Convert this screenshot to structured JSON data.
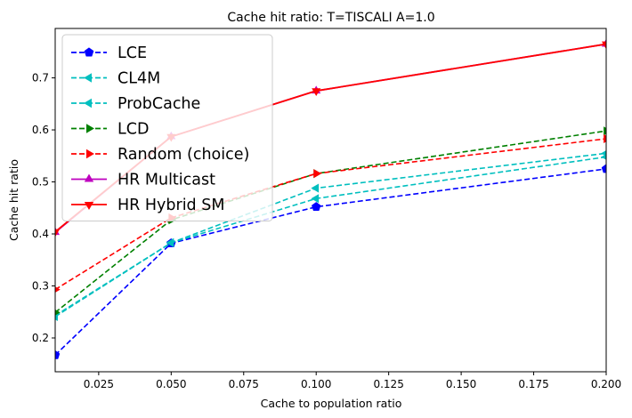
{
  "chart_data": {
    "type": "line",
    "title": "Cache hit ratio: T=TISCALI A=1.0",
    "xlabel": "Cache to population ratio",
    "ylabel": "Cache hit ratio",
    "xlim": [
      0.01,
      0.2
    ],
    "ylim": [
      0.135,
      0.795
    ],
    "xticks": [
      "0.025",
      "0.050",
      "0.075",
      "0.100",
      "0.125",
      "0.150",
      "0.175",
      "0.200"
    ],
    "yticks": [
      "0.2",
      "0.3",
      "0.4",
      "0.5",
      "0.6",
      "0.7"
    ],
    "x": [
      0.01,
      0.05,
      0.1,
      0.2
    ],
    "grid": false,
    "legend": "upper-left",
    "series": [
      {
        "name": "LCE",
        "values": [
          0.167,
          0.382,
          0.452,
          0.525
        ],
        "color": "#0000ff",
        "dash": "dashed",
        "marker": "pentagon"
      },
      {
        "name": "CL4M",
        "values": [
          0.243,
          0.383,
          0.488,
          0.555
        ],
        "color": "#00bfbf",
        "dash": "dashed",
        "marker": "triangle-left"
      },
      {
        "name": "ProbCache",
        "values": [
          0.241,
          0.383,
          0.468,
          0.548
        ],
        "color": "#00bfbf",
        "dash": "dashed",
        "marker": "triangle-left"
      },
      {
        "name": "LCD",
        "values": [
          0.249,
          0.427,
          0.516,
          0.598
        ],
        "color": "#008000",
        "dash": "dashed",
        "marker": "triangle-right"
      },
      {
        "name": "Random (choice)",
        "values": [
          0.293,
          0.431,
          0.516,
          0.583
        ],
        "color": "#ff0000",
        "dash": "dashed",
        "marker": "triangle-right"
      },
      {
        "name": "HR Multicast",
        "values": [
          0.403,
          0.587,
          0.675,
          0.765
        ],
        "color": "#bf00bf",
        "dash": "solid",
        "marker": "triangle-up"
      },
      {
        "name": "HR Hybrid SM",
        "values": [
          0.404,
          0.587,
          0.675,
          0.765
        ],
        "color": "#ff0000",
        "dash": "solid",
        "marker": "triangle-down"
      }
    ]
  }
}
